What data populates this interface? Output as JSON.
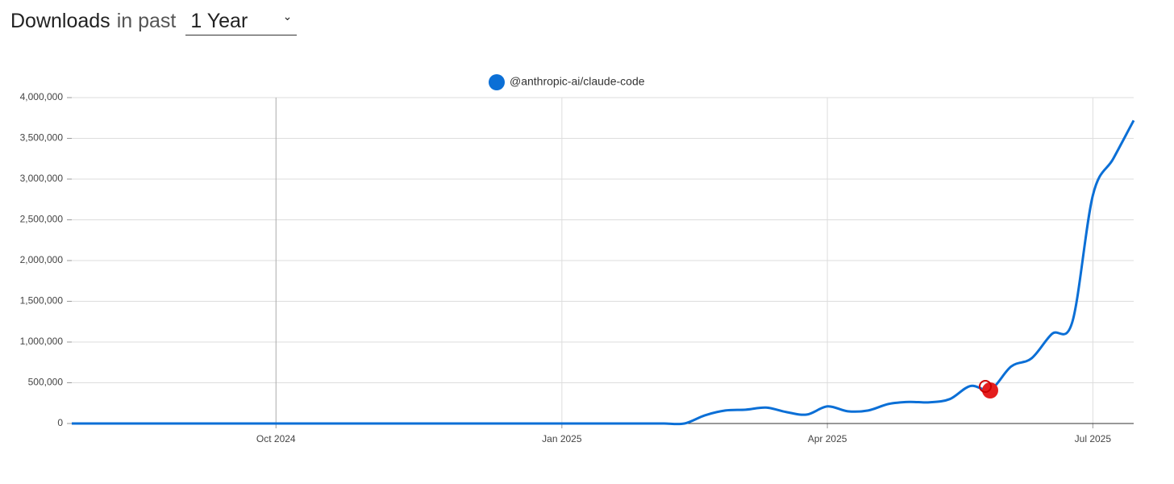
{
  "header": {
    "title": "Downloads",
    "connector": "in past",
    "period": "1 Year"
  },
  "chart_data": {
    "type": "line",
    "categories": [
      null,
      null,
      null,
      null,
      null,
      null,
      null,
      null,
      null,
      null,
      "Oct 2024",
      null,
      null,
      null,
      null,
      null,
      null,
      null,
      null,
      null,
      null,
      null,
      null,
      null,
      "Jan 2025",
      null,
      null,
      null,
      null,
      null,
      null,
      null,
      null,
      null,
      null,
      null,
      null,
      "Apr 2025",
      null,
      null,
      null,
      null,
      null,
      null,
      null,
      null,
      null,
      null,
      null,
      null,
      "Jul 2025",
      null,
      null
    ],
    "series": [
      {
        "name": "@anthropic-ai/claude-code",
        "color": "#0b6fd6",
        "values": [
          0,
          0,
          0,
          0,
          0,
          0,
          0,
          0,
          0,
          0,
          0,
          0,
          0,
          0,
          0,
          0,
          0,
          0,
          0,
          0,
          0,
          0,
          0,
          0,
          0,
          0,
          0,
          0,
          0,
          0,
          0,
          100000,
          160000,
          170000,
          195000,
          140000,
          110000,
          210000,
          150000,
          160000,
          240000,
          265000,
          260000,
          300000,
          460000,
          420000,
          700000,
          800000,
          1100000,
          1250000,
          2800000,
          3250000,
          3720000
        ]
      }
    ],
    "ylim": [
      0,
      4000000
    ],
    "yticks": [
      0,
      {
        "value": 500000,
        "label": "500,000"
      },
      {
        "value": 1000000,
        "label": "1,000,000"
      },
      {
        "value": 1500000,
        "label": "1,500,000"
      },
      {
        "value": 2000000,
        "label": "2,000,000"
      },
      {
        "value": 2500000,
        "label": "2,500,000"
      },
      {
        "value": 3000000,
        "label": "3,000,000"
      },
      {
        "value": 3500000,
        "label": "3,500,000"
      },
      {
        "value": 4000000,
        "label": "4,000,000"
      }
    ],
    "grid": true,
    "legend": "top"
  }
}
